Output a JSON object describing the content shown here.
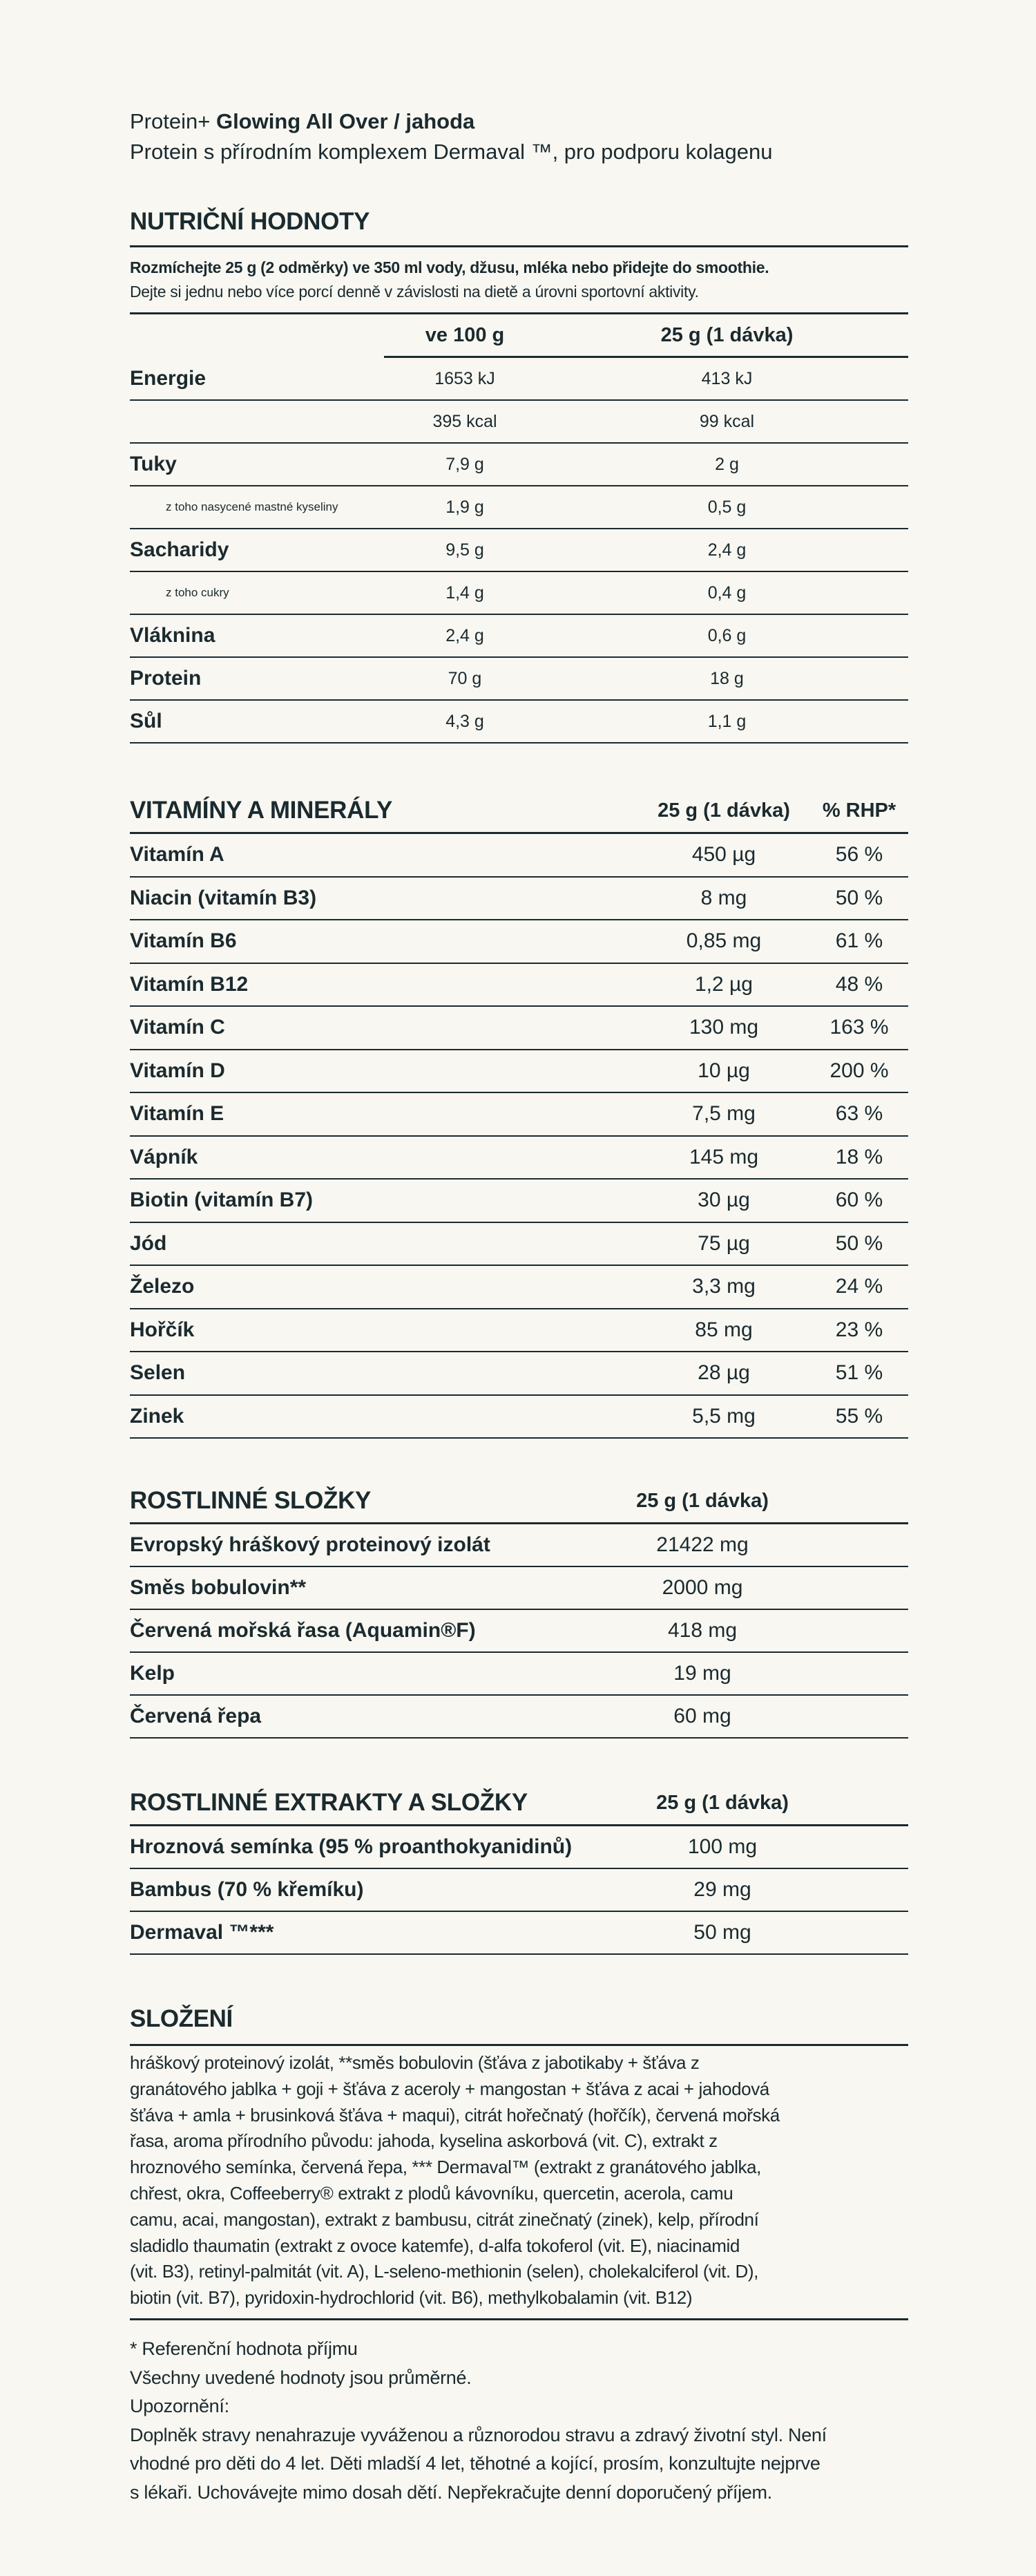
{
  "header": {
    "prefix": "Protein+",
    "name": "Glowing All Over / jahoda",
    "subtitle": "Protein s přírodním komplexem Dermaval ™, pro podporu kolagenu"
  },
  "nutrition": {
    "title": "NUTRIČNÍ HODNOTY",
    "instruction_bold": "Rozmíchejte 25 g (2 odměrky) ve 350 ml vody, džusu, mléka nebo přidejte do smoothie.",
    "instruction": "Dejte si jednu nebo více porcí denně v závislosti na dietě a úrovni sportovní aktivity.",
    "col1": "ve 100 g",
    "col2": "25 g (1 dávka)",
    "rows": [
      {
        "label": "Energie",
        "v100": "1653 kJ",
        "serving": "413 kJ",
        "sub": false
      },
      {
        "label": "",
        "v100": "395 kcal",
        "serving": "99 kcal",
        "sub": false
      },
      {
        "label": "Tuky",
        "v100": "7,9 g",
        "serving": "2 g",
        "sub": false
      },
      {
        "label": "z toho nasycené mastné kyseliny",
        "v100": "1,9 g",
        "serving": "0,5 g",
        "sub": true
      },
      {
        "label": "Sacharidy",
        "v100": "9,5 g",
        "serving": "2,4 g",
        "sub": false
      },
      {
        "label": "z toho cukry",
        "v100": "1,4 g",
        "serving": "0,4 g",
        "sub": true
      },
      {
        "label": "Vláknina",
        "v100": "2,4 g",
        "serving": "0,6 g",
        "sub": false
      },
      {
        "label": "Protein",
        "v100": "70 g",
        "serving": "18 g",
        "sub": false
      },
      {
        "label": "Sůl",
        "v100": "4,3 g",
        "serving": "1,1 g",
        "sub": false
      }
    ]
  },
  "vitamins": {
    "title": "VITAMÍNY A MINERÁLY",
    "col1": "25 g (1 dávka)",
    "col2": "% RHP*",
    "rows": [
      {
        "name": "Vitamín A",
        "amount": "450 µg",
        "rhp": "56 %"
      },
      {
        "name": "Niacin (vitamín B3)",
        "amount": "8 mg",
        "rhp": "50 %"
      },
      {
        "name": "Vitamín B6",
        "amount": "0,85 mg",
        "rhp": "61 %"
      },
      {
        "name": "Vitamín B12",
        "amount": "1,2 µg",
        "rhp": "48 %"
      },
      {
        "name": "Vitamín C",
        "amount": "130 mg",
        "rhp": "163 %"
      },
      {
        "name": "Vitamín D",
        "amount": "10 µg",
        "rhp": "200 %"
      },
      {
        "name": "Vitamín E",
        "amount": "7,5 mg",
        "rhp": "63 %"
      },
      {
        "name": "Vápník",
        "amount": "145 mg",
        "rhp": "18 %"
      },
      {
        "name": "Biotin (vitamín B7)",
        "amount": "30 µg",
        "rhp": "60 %"
      },
      {
        "name": "Jód",
        "amount": "75 µg",
        "rhp": "50 %"
      },
      {
        "name": "Železo",
        "amount": "3,3 mg",
        "rhp": "24 %"
      },
      {
        "name": "Hořčík",
        "amount": "85 mg",
        "rhp": "23 %"
      },
      {
        "name": "Selen",
        "amount": "28 µg",
        "rhp": "51 %"
      },
      {
        "name": "Zinek",
        "amount": "5,5 mg",
        "rhp": "55 %"
      }
    ]
  },
  "plants": {
    "title": "ROSTLINNÉ SLOŽKY",
    "col1": "25 g (1 dávka)",
    "rows": [
      {
        "name": "Evropský hráškový proteinový izolát",
        "amount": "21422 mg"
      },
      {
        "name": "Směs bobulovin**",
        "amount": "2000 mg"
      },
      {
        "name": "Červená mořská řasa (Aquamin®F)",
        "amount": "418 mg"
      },
      {
        "name": "Kelp",
        "amount": "19 mg"
      },
      {
        "name": "Červená řepa",
        "amount": "60 mg"
      }
    ]
  },
  "extracts": {
    "title": "ROSTLINNÉ EXTRAKTY A SLOŽKY",
    "col1": "25 g (1 dávka)",
    "rows": [
      {
        "name": "Hroznová semínka (95 % proanthokyanidinů)",
        "amount": "100 mg"
      },
      {
        "name": "Bambus (70 % křemíku)",
        "amount": "29 mg"
      },
      {
        "name": "Dermaval ™***",
        "amount": "50 mg"
      }
    ]
  },
  "composition": {
    "title": "SLOŽENÍ",
    "lines": [
      "hráškový proteinový izolát, **směs bobulovin (šťáva z jabotikaby + šťáva z",
      "granátového jablka + goji + šťáva z aceroly + mangostan + šťáva z acai + jahodová",
      "šťáva + amla + brusinková šťáva + maqui), citrát hořečnatý (hořčík), červená mořská",
      "řasa, aroma přírodního původu: jahoda, kyselina askorbová (vit. C), extrakt z",
      "hroznového semínka, červená řepa, *** Dermaval™ (extrakt z granátového jablka,",
      "chřest, okra, Coffeeberry® extrakt z plodů kávovníku, quercetin, acerola, camu",
      "camu, acai, mangostan), extrakt z bambusu, citrát zinečnatý (zinek), kelp, přírodní",
      "sladidlo thaumatin (extrakt z ovoce katemfe), d-alfa tokoferol (vit. E), niacinamid",
      "(vit. B3), retinyl-palmitát (vit. A), L-seleno-methionin (selen), cholekalciferol (vit. D),",
      "biotin (vit. B7), pyridoxin-hydrochlorid (vit. B6), methylkobalamin (vit. B12)"
    ]
  },
  "footnotes": [
    "* Referenční hodnota příjmu",
    "Všechny uvedené hodnoty jsou průměrné.",
    "Upozornění:",
    "Doplněk stravy nenahrazuje vyváženou a různorodou stravu a zdravý životní styl. Není",
    "vhodné pro děti do 4 let. Děti mladší 4 let, těhotné a kojící, prosím, konzultujte nejprve",
    "s lékaři. Uchovávejte mimo dosah dětí. Nepřekračujte denní doporučený příjem."
  ]
}
